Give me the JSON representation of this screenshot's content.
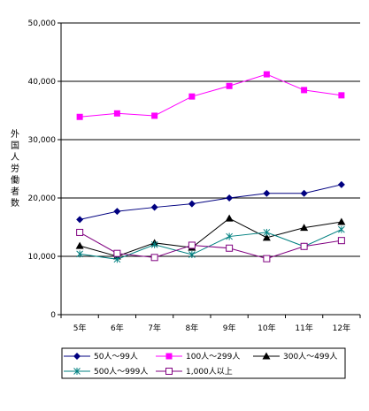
{
  "chart_data": {
    "type": "line",
    "title": "",
    "xlabel": "",
    "ylabel": "外国人労働者数",
    "ylim": [
      0,
      50000
    ],
    "y_ticks": [
      "0",
      "10,000",
      "20,000",
      "30,000",
      "40,000",
      "50,000"
    ],
    "grid": "horizontal",
    "legend_position": "bottom",
    "categories": [
      "5年",
      "6年",
      "7年",
      "8年",
      "9年",
      "10年",
      "11年",
      "12年"
    ],
    "series": [
      {
        "name": "50人～99人",
        "color": "#000080",
        "marker": "diamond",
        "values": [
          16300,
          17700,
          18400,
          19000,
          20000,
          20800,
          20800,
          22300
        ]
      },
      {
        "name": "100人～299人",
        "color": "#ff00ff",
        "marker": "square",
        "values": [
          33900,
          34500,
          34100,
          37400,
          39200,
          41200,
          38500,
          37600
        ]
      },
      {
        "name": "300人～499人",
        "color": "#000000",
        "marker": "triangle",
        "values": [
          11800,
          10000,
          12300,
          11500,
          16500,
          13200,
          14900,
          15900
        ]
      },
      {
        "name": "500人～999人",
        "color": "#008080",
        "marker": "star",
        "values": [
          10400,
          9500,
          12000,
          10300,
          13400,
          14100,
          11700,
          14600
        ]
      },
      {
        "name": "1,000人以上",
        "color": "#800080",
        "marker": "hollow-square",
        "values": [
          14100,
          10500,
          9800,
          11900,
          11400,
          9600,
          11700,
          12700
        ]
      }
    ]
  }
}
